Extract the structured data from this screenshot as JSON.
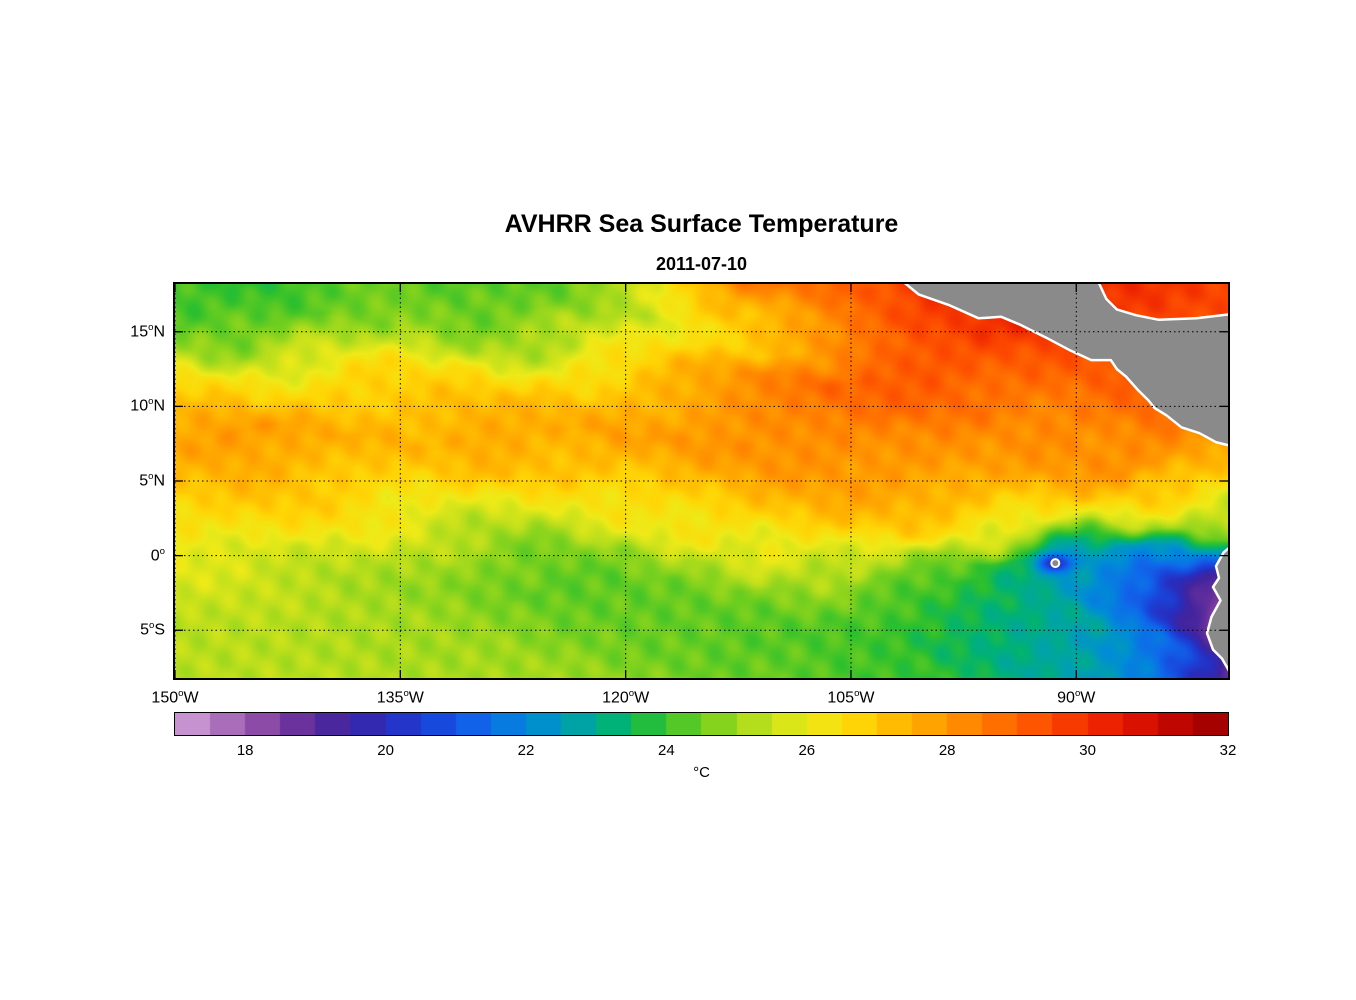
{
  "chart_data": {
    "type": "heatmap",
    "title": "AVHRR Sea Surface Temperature",
    "subtitle": "2011-07-10",
    "x_axis": {
      "min": -150,
      "max": -79.9,
      "tick_values": [
        -150,
        -135,
        -120,
        -105,
        -90
      ],
      "tick_labels": [
        {
          "num": "150",
          "hemi": "W"
        },
        {
          "num": "135",
          "hemi": "W"
        },
        {
          "num": "120",
          "hemi": "W"
        },
        {
          "num": "105",
          "hemi": "W"
        },
        {
          "num": "90",
          "hemi": "W"
        }
      ]
    },
    "y_axis": {
      "min": -8.2,
      "max": 18.2,
      "tick_values": [
        15,
        10,
        5,
        0,
        -5
      ],
      "tick_labels": [
        {
          "num": "15",
          "hemi": "N"
        },
        {
          "num": "10",
          "hemi": "N"
        },
        {
          "num": "5",
          "hemi": "N"
        },
        {
          "num": "0",
          "hemi": ""
        },
        {
          "num": "5",
          "hemi": "S"
        }
      ]
    },
    "colorbar": {
      "label": "°C",
      "min": 17,
      "max": 32,
      "segment_step": 0.5,
      "tick_values": [
        18,
        20,
        22,
        24,
        26,
        28,
        30,
        32
      ],
      "tick_labels": [
        "18",
        "20",
        "22",
        "24",
        "26",
        "28",
        "30",
        "32"
      ]
    },
    "colormap_stops": [
      [
        17.0,
        213,
        166,
        219
      ],
      [
        17.6,
        178,
        120,
        192
      ],
      [
        18.2,
        142,
        77,
        167
      ],
      [
        18.8,
        104,
        48,
        156
      ],
      [
        19.4,
        66,
        36,
        158
      ],
      [
        20.0,
        40,
        45,
        190
      ],
      [
        20.7,
        25,
        70,
        220
      ],
      [
        21.4,
        15,
        105,
        235
      ],
      [
        22.1,
        0,
        140,
        215
      ],
      [
        22.7,
        0,
        162,
        170
      ],
      [
        23.3,
        0,
        178,
        115
      ],
      [
        23.9,
        45,
        192,
        45
      ],
      [
        24.6,
        120,
        208,
        30
      ],
      [
        25.3,
        185,
        222,
        28
      ],
      [
        26.0,
        238,
        234,
        24
      ],
      [
        26.7,
        255,
        214,
        6
      ],
      [
        27.4,
        255,
        180,
        0
      ],
      [
        28.1,
        255,
        145,
        0
      ],
      [
        28.8,
        255,
        108,
        0
      ],
      [
        29.5,
        252,
        72,
        0
      ],
      [
        30.2,
        238,
        36,
        0
      ],
      [
        30.9,
        210,
        12,
        0
      ],
      [
        31.5,
        180,
        2,
        0
      ],
      [
        32.0,
        150,
        0,
        0
      ]
    ],
    "grid": {
      "lons": [
        -150,
        -145,
        -140,
        -135,
        -130,
        -125,
        -120,
        -115,
        -110,
        -105,
        -100,
        -95,
        -90,
        -85,
        -80
      ],
      "lats": [
        18,
        16,
        14,
        12,
        10,
        8,
        6,
        4,
        2,
        0,
        -2,
        -4,
        -6,
        -8
      ],
      "sst": [
        [
          24.0,
          23.8,
          24.3,
          24.6,
          24.2,
          24.4,
          25.5,
          27.4,
          28.8,
          29.0,
          29.8,
          30.3,
          30.2,
          30.0,
          29.6
        ],
        [
          24.3,
          24.1,
          24.5,
          24.9,
          24.5,
          24.6,
          25.3,
          26.5,
          27.6,
          28.4,
          29.4,
          30.0,
          29.9,
          29.7,
          29.4
        ],
        [
          25.2,
          24.9,
          25.3,
          25.6,
          25.2,
          25.3,
          25.8,
          26.5,
          27.4,
          28.6,
          29.3,
          29.5,
          29.3,
          29.2,
          29.1
        ],
        [
          26.4,
          26.2,
          26.4,
          26.7,
          26.4,
          26.6,
          26.9,
          27.4,
          28.2,
          29.0,
          29.2,
          29.0,
          28.9,
          29.2,
          29.0
        ],
        [
          27.0,
          27.1,
          27.2,
          27.0,
          27.2,
          27.3,
          27.5,
          27.8,
          28.3,
          28.7,
          28.8,
          28.5,
          28.6,
          29.0,
          28.6
        ],
        [
          27.6,
          28.0,
          27.6,
          27.4,
          27.6,
          27.5,
          27.8,
          28.0,
          28.2,
          28.3,
          28.2,
          28.0,
          28.2,
          28.5,
          27.9
        ],
        [
          27.3,
          27.5,
          27.3,
          27.0,
          27.2,
          27.1,
          27.3,
          27.6,
          27.9,
          28.0,
          28.0,
          27.8,
          27.9,
          28.0,
          27.2
        ],
        [
          26.9,
          27.0,
          26.8,
          26.5,
          26.3,
          26.1,
          26.5,
          27.0,
          27.4,
          27.6,
          27.5,
          27.2,
          27.1,
          26.6,
          26.2
        ],
        [
          26.4,
          26.5,
          26.2,
          25.8,
          25.5,
          25.3,
          25.8,
          26.3,
          26.8,
          27.0,
          26.8,
          26.1,
          25.6,
          25.1,
          24.6
        ],
        [
          25.9,
          25.8,
          25.5,
          25.2,
          24.8,
          24.6,
          24.8,
          25.2,
          25.8,
          26.0,
          25.1,
          24.0,
          22.6,
          22.2,
          21.2
        ],
        [
          25.6,
          25.5,
          25.3,
          25.0,
          24.6,
          24.3,
          24.4,
          24.6,
          24.8,
          24.8,
          24.1,
          23.4,
          22.6,
          21.2,
          18.8
        ],
        [
          25.4,
          25.3,
          25.2,
          25.1,
          24.9,
          24.6,
          24.4,
          24.4,
          24.4,
          24.3,
          23.9,
          23.2,
          22.7,
          21.2,
          18.4
        ],
        [
          25.3,
          25.3,
          25.2,
          25.1,
          25.0,
          24.8,
          24.6,
          24.4,
          24.2,
          24.1,
          23.9,
          23.3,
          22.6,
          21.3,
          18.2
        ],
        [
          25.3,
          25.3,
          25.3,
          25.2,
          25.1,
          25.0,
          24.8,
          24.6,
          24.4,
          24.1,
          23.9,
          23.4,
          22.9,
          21.8,
          18.8
        ]
      ]
    },
    "land": {
      "color": "#8a8a8a",
      "outline": "#ffffff",
      "polygons": [
        [
          [
            -101.7,
            18.5
          ],
          [
            -100.5,
            17.5
          ],
          [
            -98.5,
            16.8
          ],
          [
            -96.5,
            15.9
          ],
          [
            -95.0,
            16.0
          ],
          [
            -93.8,
            15.5
          ],
          [
            -92.0,
            14.6
          ],
          [
            -90.5,
            13.8
          ],
          [
            -89.0,
            13.1
          ],
          [
            -87.7,
            13.1
          ],
          [
            -87.3,
            12.5
          ],
          [
            -86.7,
            12.0
          ],
          [
            -85.9,
            11.1
          ],
          [
            -85.2,
            10.4
          ],
          [
            -84.8,
            9.9
          ],
          [
            -84.0,
            9.4
          ],
          [
            -83.0,
            8.6
          ],
          [
            -81.8,
            8.2
          ],
          [
            -80.7,
            7.6
          ],
          [
            -79.5,
            7.3
          ],
          [
            -79.5,
            16.2
          ],
          [
            -82.0,
            15.9
          ],
          [
            -84.5,
            15.8
          ],
          [
            -86.0,
            16.1
          ],
          [
            -87.3,
            16.5
          ],
          [
            -88.0,
            17.2
          ],
          [
            -88.6,
            18.5
          ]
        ],
        [
          [
            -79.5,
            0.8
          ],
          [
            -80.2,
            0.2
          ],
          [
            -80.7,
            -0.7
          ],
          [
            -80.5,
            -1.5
          ],
          [
            -80.9,
            -2.1
          ],
          [
            -80.4,
            -3.0
          ],
          [
            -81.0,
            -4.1
          ],
          [
            -81.3,
            -5.2
          ],
          [
            -80.9,
            -6.3
          ],
          [
            -80.3,
            -6.9
          ],
          [
            -79.9,
            -7.6
          ],
          [
            -79.5,
            -8.4
          ]
        ]
      ]
    },
    "islands": [
      {
        "lon": -91.4,
        "lat": -0.5,
        "cold_anomaly": 3.0
      }
    ]
  }
}
